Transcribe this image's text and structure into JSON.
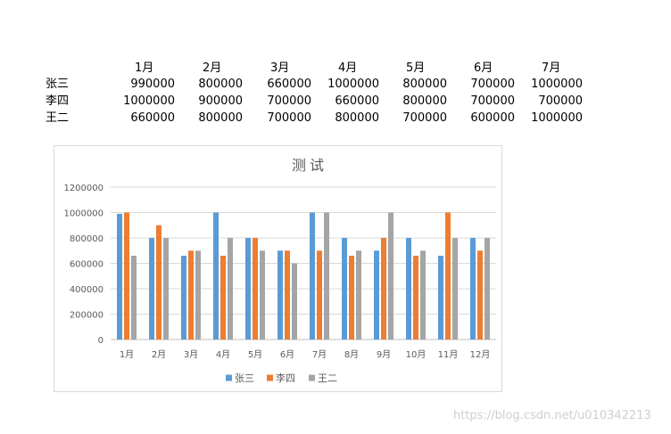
{
  "table": {
    "months": [
      "1月",
      "2月",
      "3月",
      "4月",
      "5月",
      "6月",
      "7月"
    ],
    "rows": [
      {
        "name": "张三",
        "values": [
          990000,
          800000,
          660000,
          1000000,
          800000,
          700000,
          1000000
        ]
      },
      {
        "name": "李四",
        "values": [
          1000000,
          900000,
          700000,
          660000,
          800000,
          700000,
          700000
        ]
      },
      {
        "name": "王二",
        "values": [
          660000,
          800000,
          700000,
          800000,
          700000,
          600000,
          1000000
        ]
      }
    ]
  },
  "chart_data": {
    "type": "bar",
    "title": "测试",
    "categories": [
      "1月",
      "2月",
      "3月",
      "4月",
      "5月",
      "6月",
      "7月",
      "8月",
      "9月",
      "10月",
      "11月",
      "12月"
    ],
    "series": [
      {
        "name": "张三",
        "color": "#5b9bd5",
        "values": [
          990000,
          800000,
          660000,
          1000000,
          800000,
          700000,
          1000000,
          800000,
          700000,
          800000,
          660000,
          800000
        ]
      },
      {
        "name": "李四",
        "color": "#ed7d31",
        "values": [
          1000000,
          900000,
          700000,
          660000,
          800000,
          700000,
          700000,
          660000,
          800000,
          660000,
          1000000,
          700000
        ]
      },
      {
        "name": "王二",
        "color": "#a5a5a5",
        "values": [
          660000,
          800000,
          700000,
          800000,
          700000,
          600000,
          1000000,
          700000,
          1000000,
          700000,
          800000,
          800000
        ]
      }
    ],
    "y_ticks": [
      "0",
      "200000",
      "400000",
      "600000",
      "800000",
      "1000000",
      "1200000"
    ],
    "ylim": [
      0,
      1200000
    ],
    "grid": true,
    "legend": "bottom"
  },
  "watermark": "https://blog.csdn.net/u010342213"
}
